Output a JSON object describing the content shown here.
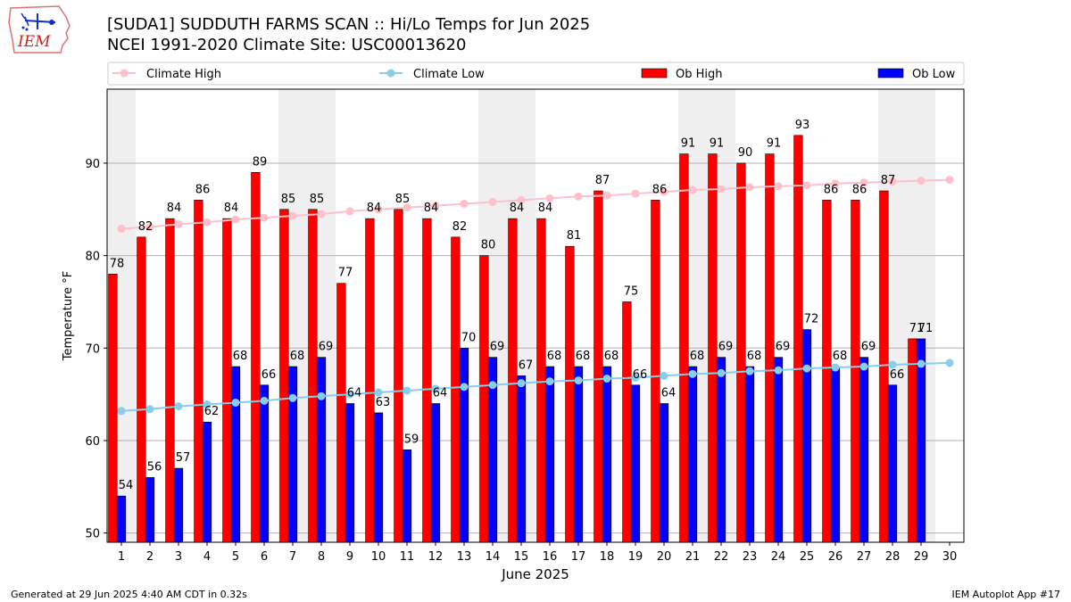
{
  "header": {
    "title_line1": "[SUDA1] SUDDUTH FARMS SCAN :: Hi/Lo Temps for Jun 2025",
    "title_line2": "NCEI 1991-2020 Climate Site: USC00013620",
    "logo_text": "IEM"
  },
  "footer": {
    "generated": "Generated at 29 Jun 2025 4:40 AM CDT in 0.32s",
    "app": "IEM Autoplot App #17"
  },
  "colors": {
    "ob_high": "#ff0000",
    "ob_low": "#0000ff",
    "climate_high": "#ffc0cb",
    "climate_low": "#87ceeb",
    "weekend_band": "#efefef",
    "grid": "#b0b0b0"
  },
  "chart_data": {
    "type": "bar",
    "xlabel": "June 2025",
    "ylabel": "Temperature °F",
    "ylim": [
      49,
      98
    ],
    "yticks": [
      50,
      60,
      70,
      80,
      90
    ],
    "grid": true,
    "legend_position": "top",
    "categories": [
      "1",
      "2",
      "3",
      "4",
      "5",
      "6",
      "7",
      "8",
      "9",
      "10",
      "11",
      "12",
      "13",
      "14",
      "15",
      "16",
      "17",
      "18",
      "19",
      "20",
      "21",
      "22",
      "23",
      "24",
      "25",
      "26",
      "27",
      "28",
      "29",
      "30"
    ],
    "shaded_days": [
      1,
      7,
      8,
      14,
      15,
      21,
      22,
      28,
      29
    ],
    "legend": [
      "Climate High",
      "Climate Low",
      "Ob High",
      "Ob Low"
    ],
    "series": [
      {
        "name": "Ob High",
        "kind": "bar",
        "values": [
          78,
          82,
          84,
          86,
          84,
          89,
          85,
          85,
          77,
          84,
          85,
          84,
          82,
          80,
          84,
          84,
          81,
          87,
          75,
          86,
          91,
          91,
          90,
          91,
          93,
          86,
          86,
          87,
          71,
          null
        ],
        "labels": [
          "78",
          "82",
          "84",
          "86",
          "84",
          "89",
          "85",
          "85",
          "77",
          "84",
          "85",
          "84",
          "82",
          "80",
          "84",
          "84",
          "81",
          "87",
          "75",
          "86",
          "91",
          "91",
          "90",
          "91",
          "93",
          "86",
          "86",
          "87",
          "71",
          ""
        ]
      },
      {
        "name": "Ob Low",
        "kind": "bar",
        "values": [
          54,
          56,
          57,
          62,
          68,
          66,
          68,
          69,
          64,
          63,
          59,
          64,
          70,
          69,
          67,
          68,
          68,
          68,
          66,
          64,
          68,
          69,
          68,
          69,
          72,
          68,
          69,
          66,
          71,
          null
        ],
        "labels": [
          "54",
          "56",
          "57",
          "62",
          "68",
          "66",
          "68",
          "69",
          "64",
          "63",
          "59",
          "64",
          "70",
          "69",
          "67",
          "68",
          "68",
          "68",
          "66",
          "64",
          "68",
          "69",
          "68",
          "69",
          "72",
          "68",
          "69",
          "66",
          "71",
          ""
        ]
      },
      {
        "name": "Climate High",
        "kind": "line",
        "values": [
          82.9,
          83.1,
          83.4,
          83.6,
          83.9,
          84.1,
          84.3,
          84.5,
          84.8,
          85.0,
          85.2,
          85.4,
          85.6,
          85.8,
          86.0,
          86.2,
          86.4,
          86.5,
          86.7,
          86.9,
          87.1,
          87.2,
          87.4,
          87.5,
          87.6,
          87.8,
          87.9,
          88.0,
          88.1,
          88.2
        ]
      },
      {
        "name": "Climate Low",
        "kind": "line",
        "values": [
          63.2,
          63.4,
          63.7,
          63.9,
          64.1,
          64.3,
          64.6,
          64.8,
          65.0,
          65.2,
          65.4,
          65.6,
          65.8,
          66.0,
          66.2,
          66.4,
          66.5,
          66.7,
          66.8,
          67.0,
          67.2,
          67.3,
          67.5,
          67.6,
          67.8,
          67.9,
          68.0,
          68.2,
          68.3,
          68.4
        ]
      }
    ]
  }
}
